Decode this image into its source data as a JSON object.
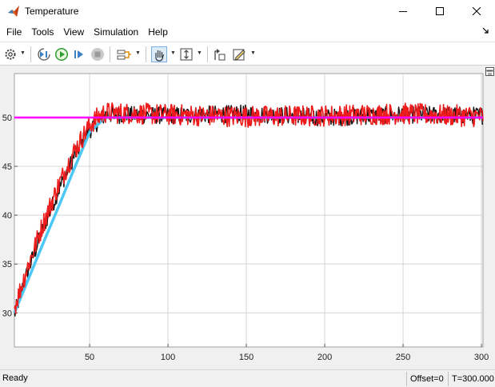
{
  "window": {
    "title": "Temperature",
    "controls": [
      "minimize-icon",
      "maximize-icon",
      "close-icon"
    ]
  },
  "menubar": {
    "items": [
      "File",
      "Tools",
      "View",
      "Simulation",
      "Help"
    ]
  },
  "toolbar": {
    "buttons": [
      "gear-icon",
      "step-back-icon",
      "run-icon",
      "step-forward-icon",
      "stop-icon",
      "signal-select-icon",
      "pan-icon",
      "zoom-axes-icon",
      "restore-view-icon",
      "style-icon"
    ]
  },
  "colors": {
    "reference": "#ff00ff",
    "model": "#4dc8f5",
    "measured_black": "#111111",
    "measured_red": "#ee1c1c",
    "plot_bg": "#ffffff",
    "grid": "#d4d4d4"
  },
  "chart_data": {
    "type": "line",
    "title": "",
    "xlabel": "",
    "ylabel": "",
    "xlim": [
      2,
      301
    ],
    "ylim": [
      26.5,
      54.5
    ],
    "xticks": [
      50,
      100,
      150,
      200,
      250,
      300
    ],
    "yticks": [
      30,
      35,
      40,
      45,
      50
    ],
    "grid": true,
    "series": [
      {
        "color_key": "reference",
        "x": [
          2,
          55,
          62,
          301
        ],
        "y": [
          50,
          50,
          50,
          50
        ]
      },
      {
        "color_key": "model",
        "x": [
          2,
          10,
          20,
          30,
          40,
          50,
          60,
          65,
          301
        ],
        "y": [
          30,
          33.1,
          37,
          40.8,
          44.7,
          48.5,
          50,
          50,
          50
        ]
      },
      {
        "color_key": "measured_black",
        "noise": 0.9,
        "x": [
          2,
          10,
          20,
          30,
          40,
          50,
          55,
          60,
          100,
          150,
          200,
          250,
          301
        ],
        "y": [
          29.8,
          34,
          38.5,
          42.5,
          46,
          48.7,
          49.5,
          50.3,
          50.2,
          50.4,
          50,
          50.3,
          50.2
        ]
      },
      {
        "color_key": "measured_red",
        "noise": 1.1,
        "x": [
          2,
          10,
          20,
          30,
          40,
          50,
          55,
          60,
          100,
          150,
          200,
          250,
          301
        ],
        "y": [
          30.5,
          34.5,
          39,
          43,
          46.5,
          49.2,
          50,
          50.5,
          50.3,
          50.1,
          50.2,
          50.4,
          50.1
        ]
      }
    ]
  },
  "status": {
    "ready": "Ready",
    "offset": "Offset=0",
    "time": "T=300.000"
  }
}
